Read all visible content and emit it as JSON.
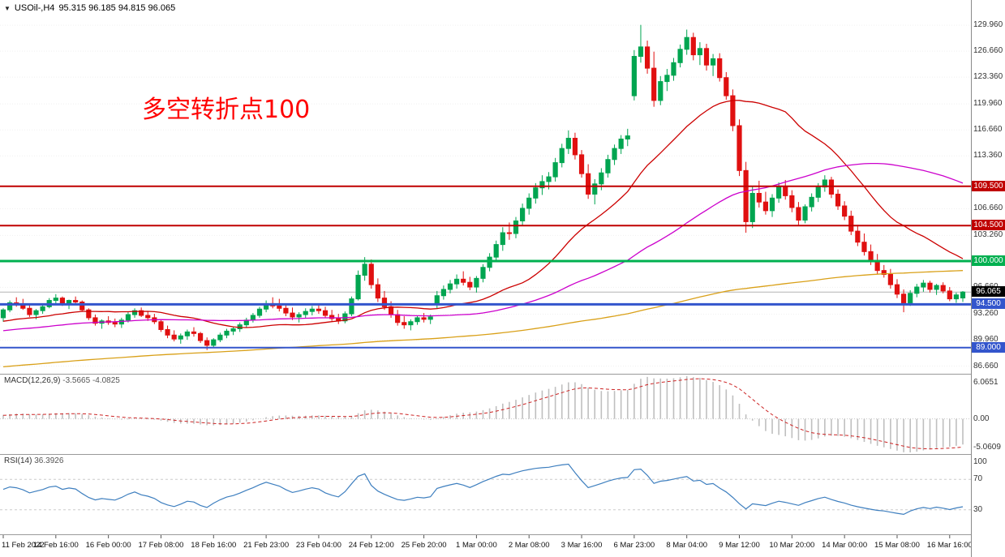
{
  "window": {
    "symbol": "USOil-,H4",
    "ohlc": "95.315 96.185 94.815 96.065"
  },
  "annotation": {
    "text": "多空转折点100",
    "color": "#FF0000"
  },
  "chart_data": {
    "type": "candlestick",
    "symbol": "USOil-",
    "timeframe": "H4",
    "title": "USOil-,H4 95.315 96.185 94.815 96.065",
    "current_bar": {
      "open": 95.315,
      "high": 96.185,
      "low": 94.815,
      "close": 96.065
    },
    "price_axis": {
      "range": [
        86.2,
        131.1
      ],
      "ticks": [
        129.96,
        126.66,
        123.36,
        119.96,
        116.66,
        113.36,
        106.66,
        103.26,
        96.66,
        93.26,
        89.96,
        86.66
      ]
    },
    "x_labels": [
      "11 Feb 2022",
      "14 Feb 16:00",
      "16 Feb 00:00",
      "17 Feb 08:00",
      "18 Feb 16:00",
      "21 Feb 23:00",
      "23 Feb 04:00",
      "24 Feb 12:00",
      "25 Feb 20:00",
      "1 Mar 00:00",
      "2 Mar 08:00",
      "3 Mar 16:00",
      "6 Mar 23:00",
      "8 Mar 04:00",
      "9 Mar 12:00",
      "10 Mar 20:00",
      "14 Mar 00:00",
      "15 Mar 08:00",
      "16 Mar 16:00"
    ],
    "label_every_n_candles": 8,
    "levels": [
      {
        "price": 109.5,
        "label": "109.500",
        "color": "#C00000",
        "width": 2
      },
      {
        "price": 104.5,
        "label": "104.500",
        "color": "#C00000",
        "width": 2
      },
      {
        "price": 100.0,
        "label": "100.000",
        "color": "#00B050",
        "width": 3
      },
      {
        "price": 94.5,
        "label": "94.500",
        "color": "#3355CC",
        "width": 3
      },
      {
        "price": 89.0,
        "label": "89.000",
        "color": "#3355CC",
        "width": 2
      }
    ],
    "current_price": {
      "value": 96.065,
      "label": "96.065",
      "color": "#000000"
    },
    "moving_averages": [
      {
        "name": "ma-fast",
        "period": 24,
        "color": "#CC0000"
      },
      {
        "name": "ma-mid",
        "period": 60,
        "color": "#CC00CC"
      },
      {
        "name": "ma-slow",
        "period": 200,
        "color": "#D9A018"
      }
    ],
    "colors": {
      "up": "#00A550",
      "down": "#E01010",
      "bid_line": "#B4B4B4"
    },
    "indicators": {
      "macd": {
        "label": "MACD(12,26,9)",
        "values_text": "-3.5665 -4.0825",
        "fast": 12,
        "slow": 26,
        "signal": 9,
        "scale_top": "6.0651",
        "scale_zero": "0.00",
        "scale_bottom": "-5.0609",
        "histogram_color": "#BFBFBF",
        "signal_color": "#CC2222"
      },
      "rsi": {
        "label": "RSI(14)",
        "value_text": "36.3926",
        "period": 14,
        "levels": [
          70,
          30
        ],
        "scale_labels": [
          "100",
          "70",
          "30"
        ],
        "line_color": "#3E7FBF"
      }
    },
    "candles": [
      [
        92.8,
        94.0,
        92.3,
        93.8
      ],
      [
        93.8,
        95.0,
        93.5,
        94.7
      ],
      [
        94.7,
        95.4,
        94.2,
        94.5
      ],
      [
        94.5,
        95.2,
        93.8,
        94.0
      ],
      [
        94.0,
        94.4,
        92.9,
        93.2
      ],
      [
        93.2,
        93.9,
        92.6,
        93.7
      ],
      [
        93.7,
        94.5,
        93.3,
        94.2
      ],
      [
        94.2,
        95.3,
        94.0,
        95.0
      ],
      [
        95.0,
        95.8,
        94.6,
        95.3
      ],
      [
        95.3,
        95.5,
        94.3,
        94.6
      ],
      [
        94.6,
        95.1,
        93.9,
        95.0
      ],
      [
        95.0,
        95.5,
        94.5,
        94.8
      ],
      [
        94.8,
        95.0,
        93.6,
        93.8
      ],
      [
        93.8,
        94.0,
        92.5,
        92.8
      ],
      [
        92.8,
        93.2,
        91.8,
        92.1
      ],
      [
        92.1,
        92.6,
        91.4,
        92.4
      ],
      [
        92.4,
        93.0,
        91.9,
        92.2
      ],
      [
        92.2,
        92.7,
        91.6,
        92.0
      ],
      [
        92.0,
        92.8,
        91.5,
        92.5
      ],
      [
        92.5,
        93.5,
        92.2,
        93.2
      ],
      [
        93.2,
        94.0,
        92.8,
        93.7
      ],
      [
        93.7,
        94.1,
        92.9,
        93.1
      ],
      [
        93.1,
        93.6,
        92.4,
        92.8
      ],
      [
        92.8,
        93.3,
        92.0,
        92.3
      ],
      [
        92.3,
        92.6,
        91.0,
        91.3
      ],
      [
        91.3,
        91.8,
        90.2,
        90.6
      ],
      [
        90.6,
        91.2,
        89.8,
        90.1
      ],
      [
        90.1,
        90.8,
        89.5,
        90.5
      ],
      [
        90.5,
        91.3,
        90.0,
        91.0
      ],
      [
        91.0,
        91.6,
        90.4,
        90.8
      ],
      [
        90.8,
        91.0,
        89.6,
        89.9
      ],
      [
        89.9,
        90.3,
        88.7,
        89.3
      ],
      [
        89.3,
        90.2,
        89.0,
        90.0
      ],
      [
        90.0,
        90.9,
        89.7,
        90.6
      ],
      [
        90.6,
        91.4,
        90.2,
        91.1
      ],
      [
        91.1,
        91.7,
        90.6,
        91.4
      ],
      [
        91.4,
        92.2,
        91.0,
        91.9
      ],
      [
        91.9,
        92.8,
        91.5,
        92.5
      ],
      [
        92.5,
        93.4,
        92.2,
        93.1
      ],
      [
        93.1,
        94.2,
        92.8,
        93.9
      ],
      [
        93.9,
        95.0,
        93.5,
        94.6
      ],
      [
        94.6,
        95.4,
        94.0,
        94.3
      ],
      [
        94.3,
        95.2,
        93.6,
        94.0
      ],
      [
        94.0,
        94.6,
        93.0,
        93.4
      ],
      [
        93.4,
        94.1,
        92.5,
        92.9
      ],
      [
        92.9,
        93.5,
        92.2,
        93.2
      ],
      [
        93.2,
        94.0,
        92.8,
        93.6
      ],
      [
        93.6,
        94.3,
        93.1,
        93.9
      ],
      [
        93.9,
        94.5,
        93.3,
        93.7
      ],
      [
        93.7,
        94.2,
        92.8,
        93.1
      ],
      [
        93.1,
        93.8,
        92.4,
        92.7
      ],
      [
        92.7,
        93.3,
        92.0,
        92.4
      ],
      [
        92.4,
        93.6,
        92.1,
        93.3
      ],
      [
        93.3,
        95.5,
        93.0,
        95.2
      ],
      [
        95.2,
        98.8,
        95.0,
        98.2
      ],
      [
        98.2,
        100.5,
        97.5,
        99.6
      ],
      [
        99.6,
        100.2,
        96.5,
        97.0
      ],
      [
        97.0,
        97.8,
        94.8,
        95.3
      ],
      [
        95.3,
        96.2,
        93.8,
        94.2
      ],
      [
        94.2,
        94.9,
        92.8,
        93.2
      ],
      [
        93.2,
        93.8,
        91.8,
        92.2
      ],
      [
        92.2,
        93.0,
        91.4,
        91.9
      ],
      [
        91.9,
        92.6,
        91.2,
        92.3
      ],
      [
        92.3,
        93.1,
        91.9,
        92.8
      ],
      [
        92.8,
        93.4,
        92.2,
        92.6
      ],
      [
        92.6,
        93.2,
        92.0,
        92.9
      ],
      [
        94.6,
        96.2,
        94.0,
        95.6
      ],
      [
        95.6,
        96.9,
        95.1,
        96.4
      ],
      [
        96.4,
        97.6,
        95.9,
        97.1
      ],
      [
        97.1,
        98.3,
        96.5,
        97.7
      ],
      [
        97.7,
        98.7,
        96.9,
        97.3
      ],
      [
        97.3,
        98.0,
        96.3,
        96.7
      ],
      [
        96.7,
        98.1,
        96.0,
        97.8
      ],
      [
        97.8,
        99.6,
        97.3,
        99.2
      ],
      [
        99.2,
        101.0,
        98.7,
        100.5
      ],
      [
        100.5,
        102.6,
        99.9,
        102.1
      ],
      [
        102.1,
        104.3,
        101.3,
        103.6
      ],
      [
        103.6,
        104.9,
        102.7,
        103.5
      ],
      [
        103.5,
        105.6,
        102.9,
        105.1
      ],
      [
        105.1,
        107.3,
        104.5,
        106.7
      ],
      [
        106.7,
        108.6,
        105.9,
        108.0
      ],
      [
        108.0,
        109.9,
        107.3,
        109.3
      ],
      [
        109.3,
        110.9,
        108.4,
        110.1
      ],
      [
        110.1,
        111.3,
        109.1,
        110.7
      ],
      [
        110.7,
        113.1,
        110.1,
        112.5
      ],
      [
        112.5,
        114.9,
        111.9,
        114.3
      ],
      [
        114.3,
        116.6,
        113.6,
        115.6
      ],
      [
        115.6,
        116.3,
        112.9,
        113.5
      ],
      [
        113.5,
        114.1,
        110.6,
        111.1
      ],
      [
        111.1,
        112.3,
        107.9,
        108.5
      ],
      [
        108.5,
        110.4,
        107.2,
        109.8
      ],
      [
        109.8,
        111.8,
        109.0,
        111.2
      ],
      [
        111.2,
        113.5,
        110.6,
        112.9
      ],
      [
        112.9,
        114.8,
        112.2,
        114.3
      ],
      [
        114.3,
        116.0,
        113.6,
        115.5
      ],
      [
        115.5,
        116.8,
        114.6,
        115.9
      ],
      [
        121.0,
        126.8,
        120.4,
        126.0
      ],
      [
        126.0,
        130.0,
        125.2,
        127.2
      ],
      [
        127.2,
        128.0,
        123.8,
        124.5
      ],
      [
        124.5,
        126.6,
        119.6,
        120.4
      ],
      [
        120.4,
        123.5,
        119.8,
        122.8
      ],
      [
        122.8,
        124.4,
        121.6,
        123.6
      ],
      [
        123.6,
        125.8,
        122.9,
        125.2
      ],
      [
        125.2,
        127.5,
        124.6,
        126.9
      ],
      [
        126.9,
        129.4,
        126.2,
        128.4
      ],
      [
        128.4,
        129.0,
        125.5,
        126.2
      ],
      [
        126.2,
        127.8,
        124.9,
        127.0
      ],
      [
        127.0,
        127.6,
        124.2,
        124.9
      ],
      [
        124.9,
        126.3,
        123.5,
        125.7
      ],
      [
        125.7,
        126.4,
        122.8,
        123.3
      ],
      [
        123.3,
        124.0,
        120.5,
        121.0
      ],
      [
        121.0,
        121.8,
        116.5,
        117.2
      ],
      [
        117.2,
        118.0,
        110.8,
        111.5
      ],
      [
        111.5,
        112.6,
        103.6,
        105.0
      ],
      [
        105.0,
        109.5,
        104.2,
        108.6
      ],
      [
        108.6,
        110.2,
        106.8,
        107.5
      ],
      [
        107.5,
        108.8,
        105.9,
        106.4
      ],
      [
        106.4,
        108.5,
        105.6,
        108.0
      ],
      [
        108.0,
        110.0,
        107.4,
        109.4
      ],
      [
        109.4,
        110.3,
        107.8,
        108.3
      ],
      [
        108.3,
        109.0,
        106.2,
        106.8
      ],
      [
        106.8,
        107.5,
        104.6,
        105.2
      ],
      [
        105.2,
        107.2,
        104.8,
        106.9
      ],
      [
        106.9,
        108.6,
        106.3,
        108.1
      ],
      [
        108.1,
        109.9,
        107.5,
        109.4
      ],
      [
        109.4,
        110.9,
        108.8,
        110.3
      ],
      [
        110.3,
        110.7,
        108.0,
        108.5
      ],
      [
        108.5,
        109.1,
        106.5,
        107.0
      ],
      [
        107.0,
        107.6,
        105.2,
        105.7
      ],
      [
        105.7,
        106.4,
        103.3,
        103.8
      ],
      [
        103.8,
        104.6,
        101.9,
        102.4
      ],
      [
        102.4,
        103.5,
        100.7,
        101.2
      ],
      [
        101.2,
        102.1,
        99.5,
        100.0
      ],
      [
        100.0,
        100.9,
        98.4,
        98.8
      ],
      [
        98.8,
        99.5,
        97.9,
        98.3
      ],
      [
        98.3,
        99.0,
        96.5,
        97.0
      ],
      [
        97.0,
        97.7,
        95.3,
        95.8
      ],
      [
        95.8,
        96.4,
        93.5,
        94.7
      ],
      [
        94.7,
        96.3,
        94.3,
        95.9
      ],
      [
        95.9,
        97.1,
        95.4,
        96.7
      ],
      [
        96.7,
        97.6,
        96.1,
        97.2
      ],
      [
        97.2,
        97.5,
        96.0,
        96.4
      ],
      [
        96.4,
        97.1,
        95.7,
        96.9
      ],
      [
        96.9,
        97.3,
        95.9,
        96.2
      ],
      [
        96.2,
        96.7,
        94.9,
        95.2
      ],
      [
        95.2,
        96.0,
        94.7,
        95.7
      ],
      [
        95.315,
        96.185,
        94.815,
        96.065
      ]
    ]
  }
}
